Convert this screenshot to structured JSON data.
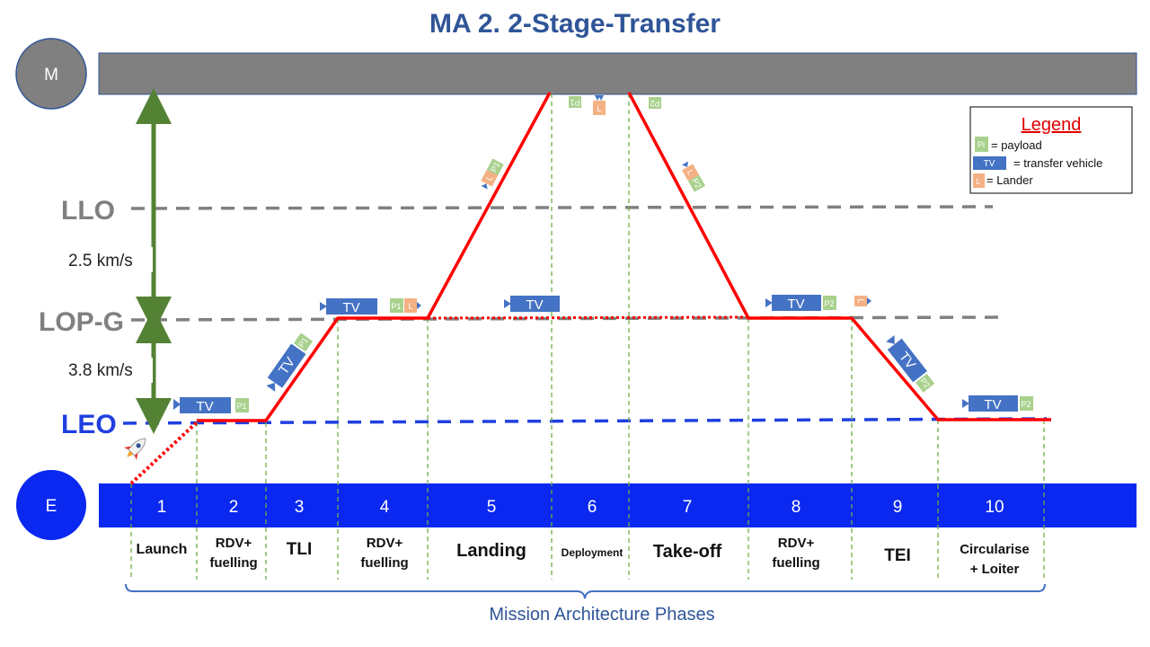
{
  "title": "MA 2. 2-Stage-Transfer",
  "bodies": {
    "moon": "M",
    "earth": "E"
  },
  "orbits": {
    "llo": "LLO",
    "lopg": "LOP-G",
    "leo": "LEO"
  },
  "delta_v": {
    "upper": "2.5 km/s",
    "lower": "3.8 km/s"
  },
  "vehicle_labels": {
    "tv": "TV",
    "p1": "P1",
    "p2": "P2",
    "l": "L"
  },
  "legend": {
    "title": "Legend",
    "payload_icon": "Pi",
    "payload_text": "= payload",
    "tv_icon": "TV",
    "tv_text": "= transfer vehicle",
    "lander_icon": "L",
    "lander_text": "= Lander"
  },
  "phases": [
    {
      "num": "1",
      "name": "Launch"
    },
    {
      "num": "2",
      "name": "RDV+ fuelling"
    },
    {
      "num": "3",
      "name": "TLI"
    },
    {
      "num": "4",
      "name": "RDV+ fuelling"
    },
    {
      "num": "5",
      "name": "Landing"
    },
    {
      "num": "6",
      "name": "Deployment"
    },
    {
      "num": "7",
      "name": "Take-off"
    },
    {
      "num": "8",
      "name": "RDV+ fuelling"
    },
    {
      "num": "9",
      "name": "TEI"
    },
    {
      "num": "10",
      "name": "Circularise + Loiter"
    }
  ],
  "footer": "Mission Architecture Phases",
  "colors": {
    "title": "#2F5597",
    "moon_bar": "#808080",
    "earth_bar": "#0A28F0",
    "trajectory": "#FF0000",
    "leo_line": "#1F3FE0",
    "orbit_dash": "#808080",
    "arrow": "#548235",
    "tv": "#4472C4",
    "payload": "#A9D18E",
    "lander": "#F4B183"
  }
}
